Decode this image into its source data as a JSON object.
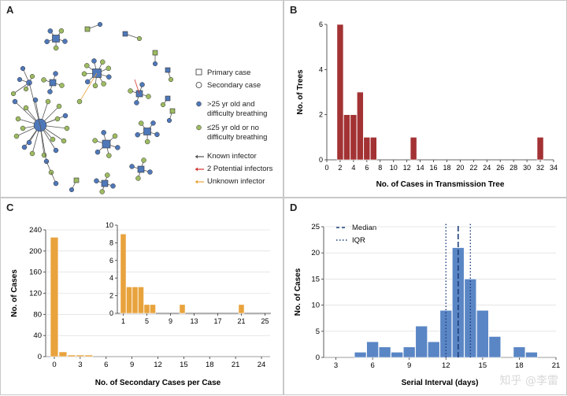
{
  "panels": {
    "a": {
      "label": "A",
      "legend": {
        "primary": "Primary case",
        "secondary": "Secondary case",
        "blue": ">25 yr old and difficulty breathing",
        "green": "≤25 yr old or no difficulty breathing",
        "known": "Known infector",
        "potential": "2 Potential infectors",
        "unknown": "Unknown infector"
      },
      "colors": {
        "blue": "#4f78b9",
        "green": "#9dbb61",
        "potential": "#d0342c",
        "unknown": "#e8a33d",
        "edge": "#555555"
      }
    },
    "b": {
      "label": "B"
    },
    "c": {
      "label": "C"
    },
    "d": {
      "label": "D",
      "legend": {
        "median": "Median",
        "iqr": "IQR"
      }
    }
  },
  "chart_data": [
    {
      "type": "bar",
      "panel": "B",
      "xlabel": "No. of Cases in Transmission Tree",
      "ylabel": "No. of Trees",
      "x": [
        2,
        3,
        4,
        5,
        6,
        7,
        13,
        32
      ],
      "values": [
        6,
        2,
        2,
        3,
        1,
        1,
        1,
        1
      ],
      "xlim": [
        0,
        34
      ],
      "ylim": [
        0,
        6
      ],
      "xticks": [
        0,
        2,
        4,
        6,
        8,
        10,
        12,
        14,
        16,
        18,
        20,
        22,
        24,
        26,
        28,
        30,
        32,
        34
      ],
      "yticks": [
        0,
        2,
        4,
        6
      ],
      "color": "#a33234"
    },
    {
      "type": "bar",
      "panel": "C",
      "xlabel": "No. of Secondary Cases per Case",
      "ylabel": "No. of Cases",
      "x": [
        0,
        1,
        2,
        3,
        4
      ],
      "values": [
        226,
        9,
        3,
        3,
        3
      ],
      "xlim": [
        -1,
        25
      ],
      "ylim": [
        0,
        240
      ],
      "xticks": [
        0,
        3,
        6,
        9,
        12,
        15,
        18,
        21,
        24
      ],
      "yticks": [
        0,
        40,
        80,
        120,
        160,
        200,
        240
      ],
      "color": "#e8a33d",
      "inset": {
        "x": [
          1,
          2,
          3,
          4,
          5,
          6,
          11,
          21
        ],
        "values": [
          9,
          3,
          3,
          3,
          1,
          1,
          1,
          1
        ],
        "xlim": [
          0,
          26
        ],
        "ylim": [
          0,
          10
        ],
        "xticks": [
          1,
          5,
          9,
          13,
          17,
          21,
          25
        ],
        "yticks": [
          0,
          2,
          4,
          6,
          8,
          10
        ]
      }
    },
    {
      "type": "bar",
      "panel": "D",
      "xlabel": "Serial Interval (days)",
      "ylabel": "No. of Cases",
      "x": [
        5,
        6,
        7,
        8,
        9,
        10,
        11,
        12,
        13,
        14,
        15,
        16,
        17,
        18,
        19,
        20
      ],
      "values": [
        1,
        3,
        2,
        1,
        2,
        6,
        3,
        9,
        21,
        15,
        9,
        4,
        0,
        2,
        1,
        0
      ],
      "xlim": [
        2,
        21
      ],
      "ylim": [
        0,
        25
      ],
      "xticks": [
        3,
        6,
        9,
        12,
        15,
        18,
        21
      ],
      "xtick_labels": [
        "3",
        "6",
        "9",
        "12",
        "15",
        "18",
        "21"
      ],
      "yticks": [
        0,
        5,
        10,
        15,
        20,
        25
      ],
      "median": 13,
      "iqr": [
        12,
        14
      ],
      "color": "#5a86c5"
    }
  ],
  "watermark": "知乎 @李雷"
}
